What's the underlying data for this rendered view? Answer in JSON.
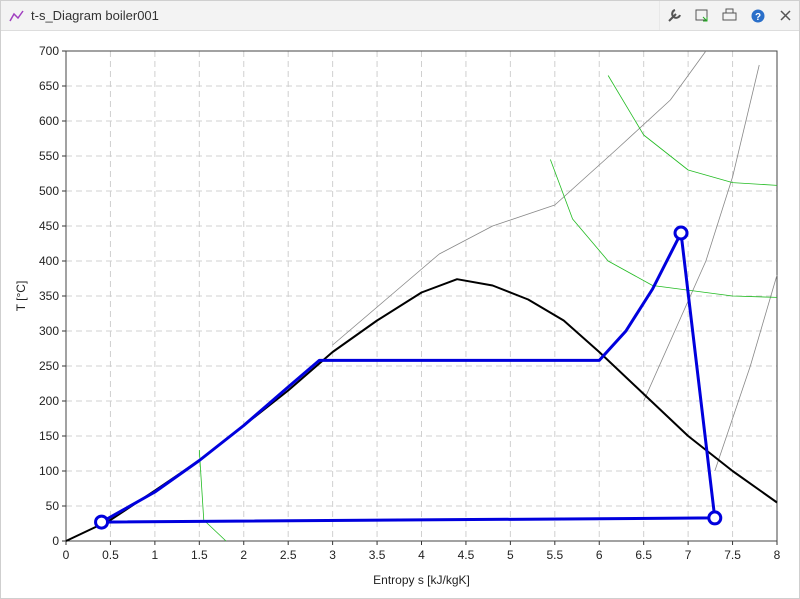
{
  "window": {
    "title": "t-s_Diagram boiler001"
  },
  "chart_data": {
    "type": "line",
    "xlabel": "Entropy s [kJ/kgK]",
    "ylabel": "T [°C]",
    "xlim": [
      0,
      8
    ],
    "xticks": [
      0,
      0.5,
      1,
      1.5,
      2,
      2.5,
      3,
      3.5,
      4,
      4.5,
      5,
      5.5,
      6,
      6.5,
      7,
      7.5,
      8
    ],
    "ylim": [
      0,
      700
    ],
    "yticks": [
      0,
      50,
      100,
      150,
      200,
      250,
      300,
      350,
      400,
      450,
      500,
      550,
      600,
      650,
      700
    ],
    "grid": true,
    "series": [
      {
        "color": "#888888",
        "width": 0.8,
        "x": [
          3,
          3.6,
          4.2,
          4.8,
          5.5,
          6.2,
          6.8,
          7.2
        ],
        "y": [
          280,
          345,
          410,
          450,
          480,
          560,
          630,
          700
        ]
      },
      {
        "color": "#888888",
        "width": 0.8,
        "x": [
          6.5,
          7.2,
          7.5,
          7.8
        ],
        "y": [
          200,
          400,
          520,
          680
        ]
      },
      {
        "color": "#888888",
        "width": 0.8,
        "x": [
          7.3,
          7.7,
          8
        ],
        "y": [
          100,
          250,
          380
        ]
      },
      {
        "color": "#22bb22",
        "width": 0.8,
        "x": [
          6.1,
          6.5,
          7,
          7.5,
          8
        ],
        "y": [
          665,
          580,
          530,
          512,
          508
        ]
      },
      {
        "color": "#22bb22",
        "width": 0.8,
        "x": [
          5.45,
          5.7,
          6.1,
          6.6,
          7.5,
          8
        ],
        "y": [
          545,
          460,
          400,
          365,
          350,
          348
        ]
      },
      {
        "color": "#22bb22",
        "width": 0.8,
        "x": [
          1.5,
          1.55,
          1.8
        ],
        "y": [
          130,
          30,
          0
        ]
      },
      {
        "color": "#000000",
        "width": 2,
        "x": [
          0,
          0.5,
          1,
          1.5,
          2,
          2.5,
          3,
          3.5,
          4,
          4.4,
          4.8,
          5.2,
          5.6,
          6,
          6.5,
          7,
          7.5,
          8
        ],
        "y": [
          0,
          30,
          72,
          115,
          165,
          215,
          270,
          315,
          355,
          374,
          365,
          345,
          315,
          270,
          210,
          150,
          100,
          55
        ]
      },
      {
        "color": "#0000dd",
        "width": 3,
        "x": [
          0.4,
          1,
          1.5,
          2,
          2.5,
          2.85,
          6,
          6.3,
          6.6,
          6.92,
          7.3,
          0.4
        ],
        "y": [
          27,
          70,
          115,
          165,
          220,
          258,
          258,
          300,
          360,
          440,
          33,
          27
        ]
      },
      {
        "color": "#0000dd",
        "width": 3,
        "marker": true,
        "x": [
          0.4,
          6.92,
          7.3
        ],
        "y": [
          27,
          440,
          33
        ]
      }
    ]
  }
}
